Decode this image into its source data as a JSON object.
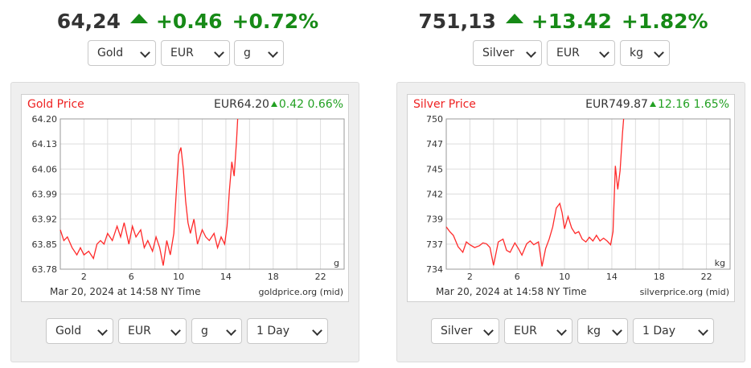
{
  "gold": {
    "headline": {
      "price": "64,24",
      "change": "+0.46",
      "percent": "+0.72%"
    },
    "selectors": {
      "metal": "Gold",
      "currency": "EUR",
      "unit": "g"
    },
    "chart": {
      "title": "Gold Price",
      "quote_price": "EUR64.20",
      "quote_change": "0.42",
      "quote_percent": "0.66%",
      "unit_label": "g",
      "timestamp": "Mar 20, 2024 at 14:58 NY Time",
      "source": "goldprice.org (mid)"
    },
    "bottom_selectors": {
      "metal": "Gold",
      "currency": "EUR",
      "unit": "g",
      "period": "1 Day"
    }
  },
  "silver": {
    "headline": {
      "price": "751,13",
      "change": "+13.42",
      "percent": "+1.82%"
    },
    "selectors": {
      "metal": "Silver",
      "currency": "EUR",
      "unit": "kg"
    },
    "chart": {
      "title": "Silver Price",
      "quote_price": "EUR749.87",
      "quote_change": "12.16",
      "quote_percent": "1.65%",
      "unit_label": "kg",
      "timestamp": "Mar 20, 2024 at 14:58 NY Time",
      "source": "silverprice.org (mid)"
    },
    "bottom_selectors": {
      "metal": "Silver",
      "currency": "EUR",
      "unit": "kg",
      "period": "1 Day"
    }
  },
  "colors": {
    "up": "#178a17",
    "line": "#ff2a2a",
    "title": "#ee2222"
  },
  "chart_data": [
    {
      "type": "line",
      "title": "Gold Price",
      "xlabel": "",
      "ylabel": "",
      "x_ticks": [
        "2",
        "6",
        "10",
        "14",
        "18",
        "22"
      ],
      "y_ticks": [
        "64.20",
        "64.13",
        "64.06",
        "63.99",
        "63.92",
        "63.85",
        "63.78"
      ],
      "xlim": [
        0,
        24
      ],
      "ylim": [
        63.78,
        64.2
      ],
      "grid": true,
      "series": [
        {
          "x": [
            0,
            0.3,
            0.6,
            1.0,
            1.4,
            1.7,
            2.0,
            2.4,
            2.8,
            3.1,
            3.4,
            3.7,
            4.0,
            4.4,
            4.8,
            5.1,
            5.4,
            5.8,
            6.1,
            6.4,
            6.8,
            7.1,
            7.4,
            7.8,
            8.1,
            8.4,
            8.7,
            9.0,
            9.3,
            9.6,
            9.8,
            10.0,
            10.2,
            10.4,
            10.6,
            10.8,
            11.0,
            11.3,
            11.6,
            12.0,
            12.3,
            12.6,
            13.0,
            13.3,
            13.6,
            13.9,
            14.1,
            14.3,
            14.5,
            14.7,
            14.9,
            15.0
          ],
          "y": [
            63.89,
            63.86,
            63.87,
            63.84,
            63.82,
            63.84,
            63.82,
            63.83,
            63.81,
            63.85,
            63.86,
            63.85,
            63.88,
            63.86,
            63.9,
            63.87,
            63.91,
            63.85,
            63.9,
            63.87,
            63.89,
            63.84,
            63.86,
            63.83,
            63.87,
            63.84,
            63.79,
            63.86,
            63.82,
            63.88,
            63.99,
            64.1,
            64.12,
            64.06,
            63.97,
            63.91,
            63.88,
            63.92,
            63.85,
            63.89,
            63.87,
            63.86,
            63.88,
            63.84,
            63.87,
            63.85,
            63.9,
            64.0,
            64.08,
            64.04,
            64.14,
            64.2
          ]
        }
      ]
    },
    {
      "type": "line",
      "title": "Silver Price",
      "xlabel": "",
      "ylabel": "",
      "x_ticks": [
        "2",
        "6",
        "10",
        "14",
        "18",
        "22"
      ],
      "y_ticks": [
        "750",
        "747",
        "745",
        "742",
        "739",
        "737",
        "734"
      ],
      "xlim": [
        0,
        24
      ],
      "ylim": [
        734,
        750
      ],
      "grid": true,
      "series": [
        {
          "x": [
            0,
            0.3,
            0.6,
            1.0,
            1.4,
            1.7,
            2.0,
            2.4,
            2.8,
            3.1,
            3.4,
            3.7,
            4.0,
            4.4,
            4.8,
            5.1,
            5.4,
            5.8,
            6.1,
            6.4,
            6.8,
            7.1,
            7.4,
            7.8,
            8.1,
            8.4,
            8.7,
            9.0,
            9.3,
            9.6,
            9.8,
            10.0,
            10.3,
            10.6,
            10.9,
            11.2,
            11.5,
            11.8,
            12.1,
            12.4,
            12.7,
            13.0,
            13.3,
            13.6,
            13.9,
            14.1,
            14.3,
            14.5,
            14.7,
            14.9,
            15.0
          ],
          "y": [
            738.5,
            738.0,
            737.6,
            736.4,
            735.8,
            736.9,
            736.6,
            736.3,
            736.5,
            736.8,
            736.7,
            736.3,
            734.4,
            736.9,
            737.2,
            736.0,
            735.8,
            736.8,
            736.2,
            735.5,
            736.7,
            737.0,
            736.6,
            736.9,
            734.3,
            736.2,
            737.2,
            738.5,
            740.5,
            741.0,
            740.0,
            738.3,
            739.6,
            738.4,
            737.8,
            738.0,
            737.2,
            736.9,
            737.4,
            737.0,
            737.6,
            737.0,
            737.3,
            737.0,
            736.6,
            738.0,
            745.0,
            742.5,
            744.5,
            748.5,
            750.0
          ]
        }
      ]
    }
  ]
}
